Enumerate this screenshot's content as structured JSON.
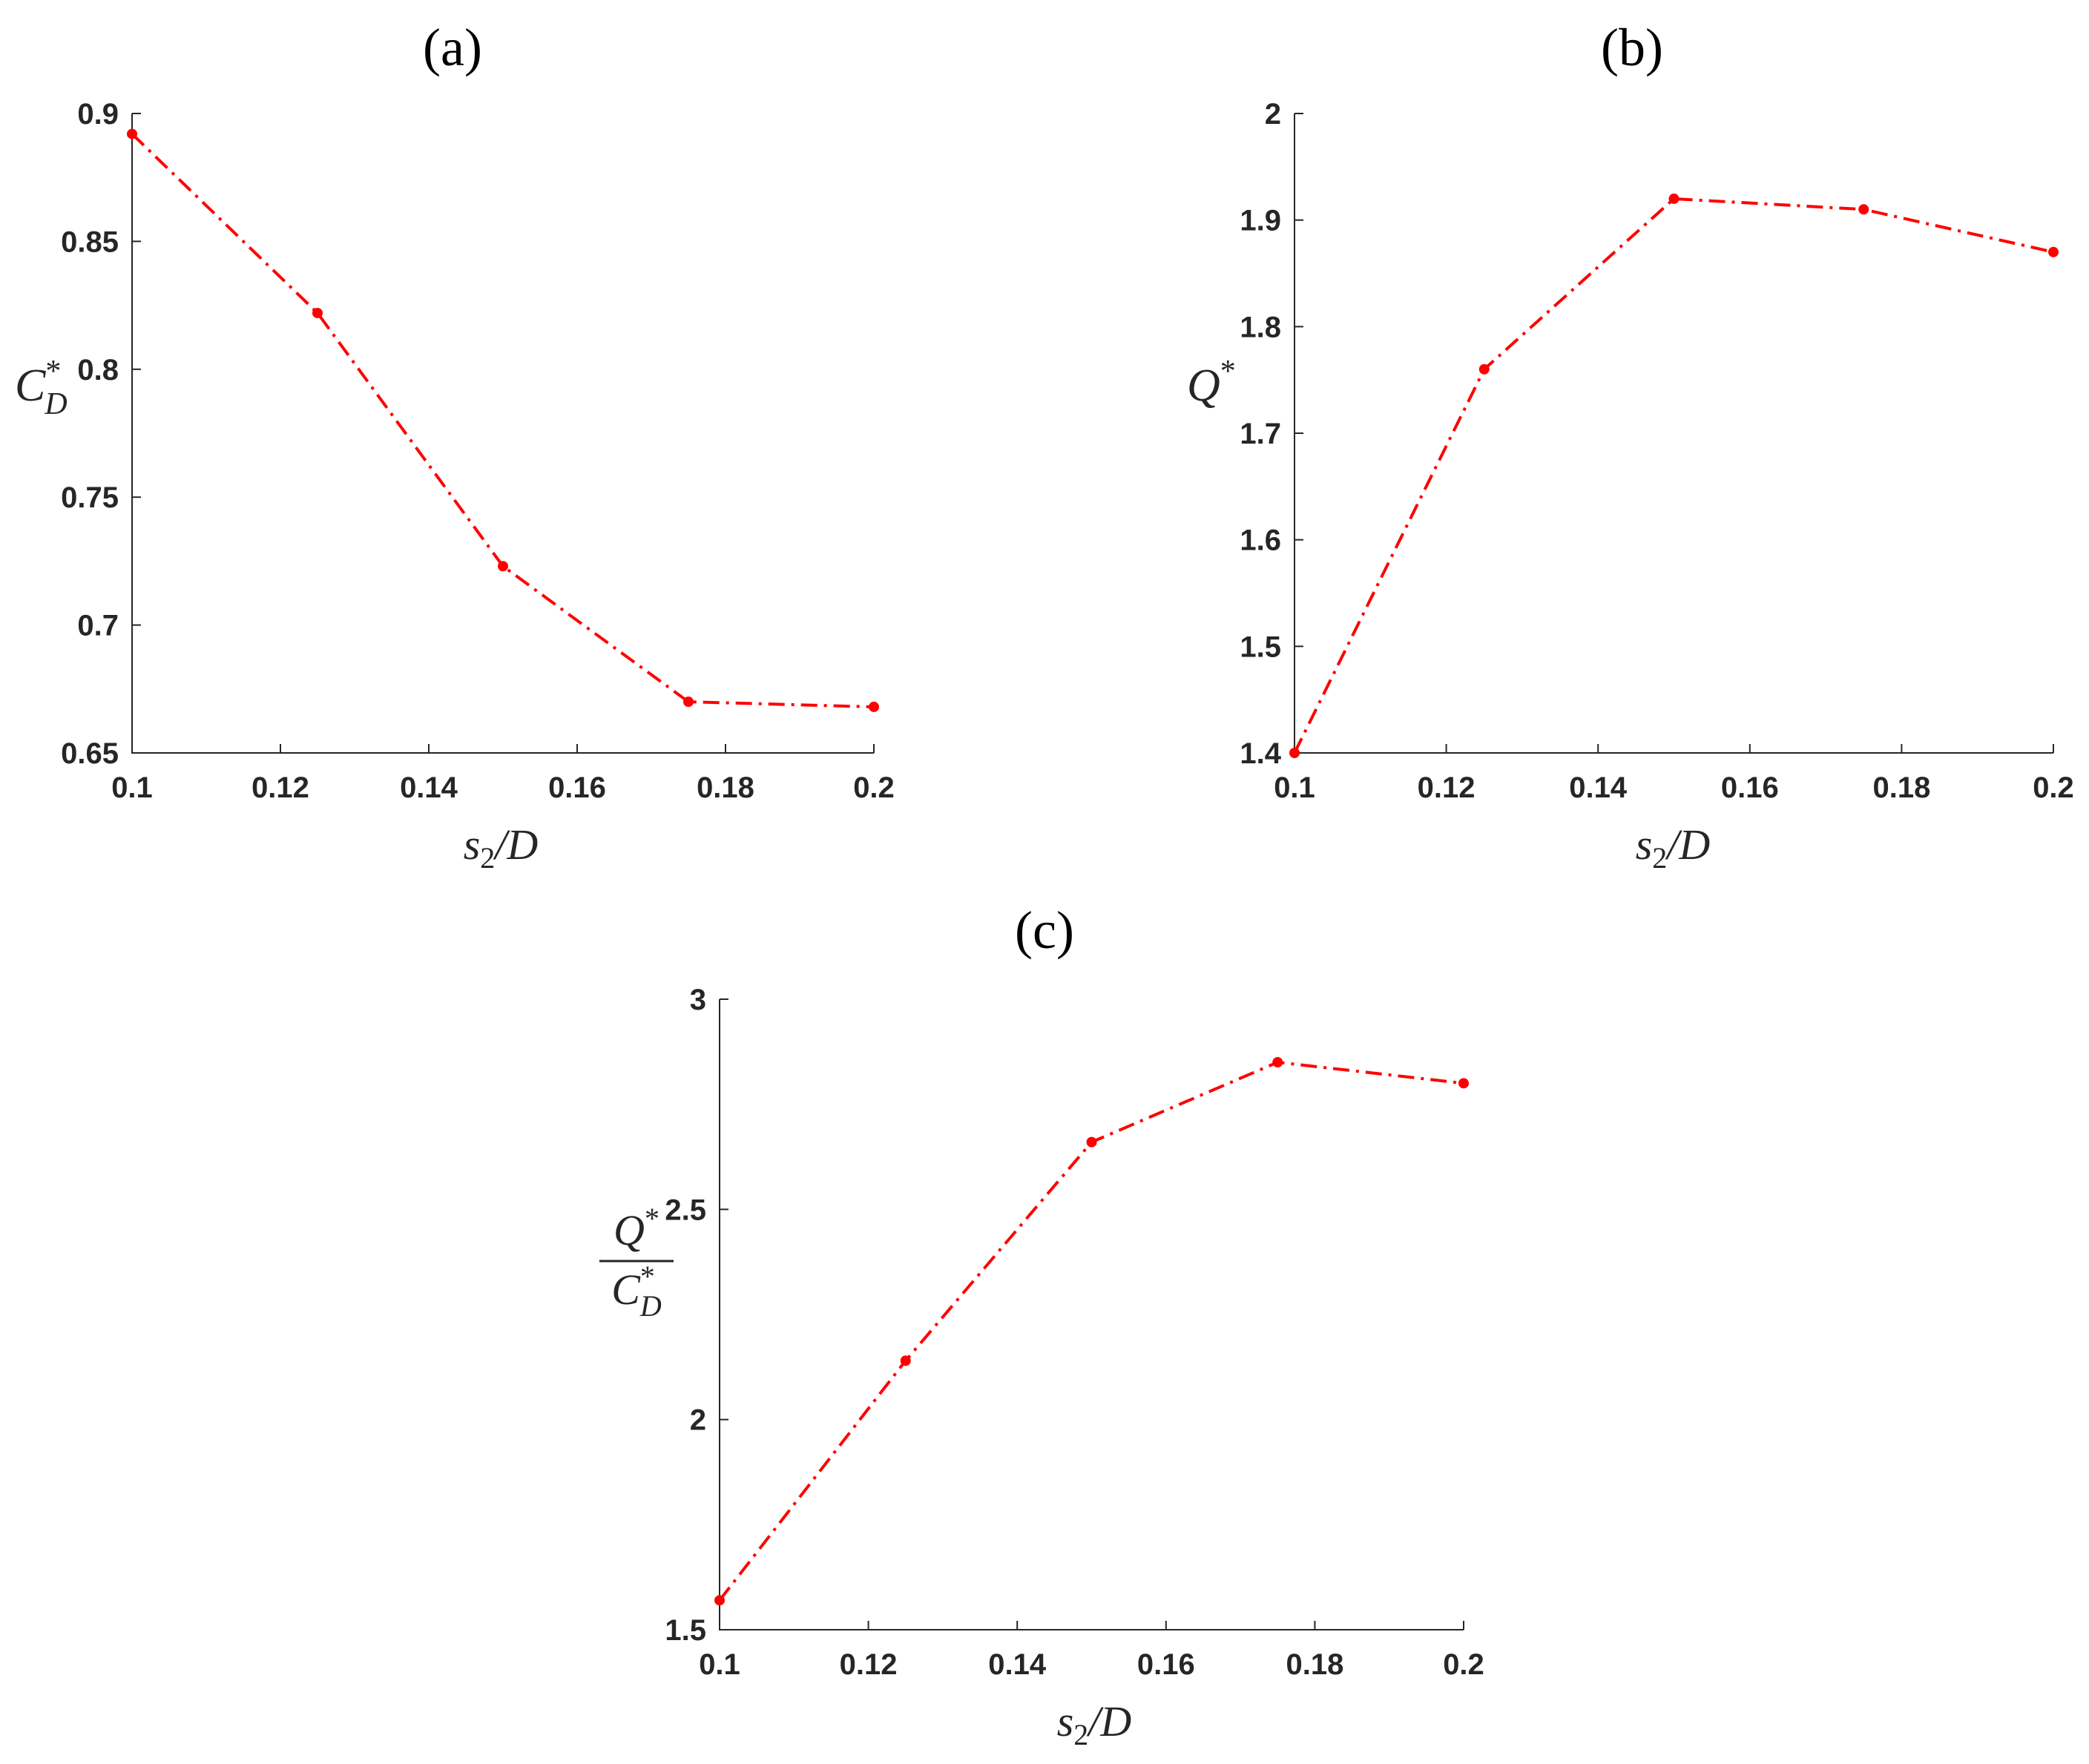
{
  "colors": {
    "series": "#ff0000",
    "axis": "#262626"
  },
  "chart_data": [
    {
      "id": "a",
      "panel_label": "(a)",
      "type": "line",
      "x": [
        0.1,
        0.125,
        0.15,
        0.175,
        0.2
      ],
      "series": [
        {
          "values": [
            0.892,
            0.822,
            0.723,
            0.67,
            0.668
          ]
        }
      ],
      "xlim": [
        0.1,
        0.2
      ],
      "ylim": [
        0.65,
        0.9
      ],
      "xticks": [
        "0.1",
        "0.12",
        "0.14",
        "0.16",
        "0.18",
        "0.2"
      ],
      "yticks": [
        "0.65",
        "0.7",
        "0.75",
        "0.8",
        "0.85",
        "0.9"
      ],
      "xlabel": {
        "main": "s",
        "sub": "2",
        "tail": "/D"
      },
      "ylabel": {
        "main": "C",
        "sup": "*",
        "sub": "D"
      },
      "grid": false,
      "marker": "dot",
      "line_style": "dash-dot"
    },
    {
      "id": "b",
      "panel_label": "(b)",
      "type": "line",
      "x": [
        0.1,
        0.125,
        0.15,
        0.175,
        0.2
      ],
      "series": [
        {
          "values": [
            1.4,
            1.76,
            1.92,
            1.91,
            1.87
          ]
        }
      ],
      "xlim": [
        0.1,
        0.2
      ],
      "ylim": [
        1.4,
        2.0
      ],
      "xticks": [
        "0.1",
        "0.12",
        "0.14",
        "0.16",
        "0.18",
        "0.2"
      ],
      "yticks": [
        "1.4",
        "1.5",
        "1.6",
        "1.7",
        "1.8",
        "1.9",
        "2"
      ],
      "xlabel": {
        "main": "s",
        "sub": "2",
        "tail": "/D"
      },
      "ylabel": {
        "main": "Q",
        "sup": "*"
      },
      "grid": false,
      "marker": "dot",
      "line_style": "dash-dot"
    },
    {
      "id": "c",
      "panel_label": "(c)",
      "type": "line",
      "x": [
        0.1,
        0.125,
        0.15,
        0.175,
        0.2
      ],
      "series": [
        {
          "values": [
            1.57,
            2.14,
            2.66,
            2.85,
            2.8
          ]
        }
      ],
      "xlim": [
        0.1,
        0.2
      ],
      "ylim": [
        1.5,
        3.0
      ],
      "xticks": [
        "0.1",
        "0.12",
        "0.14",
        "0.16",
        "0.18",
        "0.2"
      ],
      "yticks": [
        "1.5",
        "2",
        "2.5",
        "3"
      ],
      "xlabel": {
        "main": "s",
        "sub": "2",
        "tail": "/D"
      },
      "ylabel": {
        "num_main": "Q",
        "num_sup": "*",
        "den_main": "C",
        "den_sup": "*",
        "den_sub": "D"
      },
      "grid": false,
      "marker": "dot",
      "line_style": "dash-dot"
    }
  ]
}
